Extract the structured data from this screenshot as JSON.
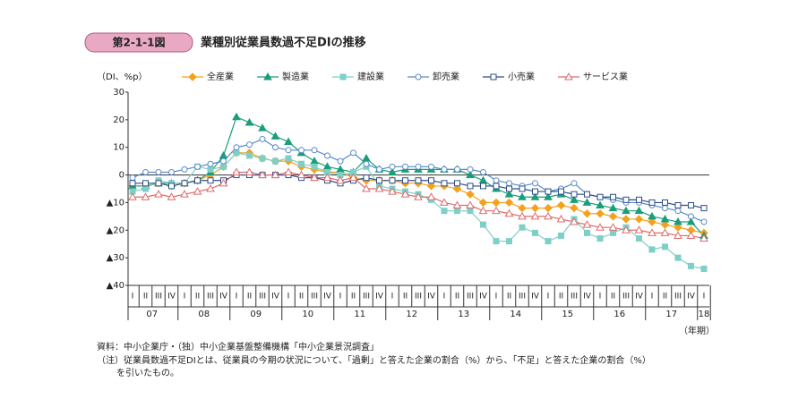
{
  "badge": "第2-1-1図",
  "chart_data": {
    "type": "line",
    "title": "業種別従業員数過不足DIの推移",
    "y_label": "（DI、%p）",
    "x_label": "（年期）",
    "categories": [
      "I",
      "II",
      "III",
      "IV",
      "I",
      "II",
      "III",
      "IV",
      "I",
      "II",
      "III",
      "IV",
      "I",
      "II",
      "III",
      "IV",
      "I",
      "II",
      "III",
      "IV",
      "I",
      "II",
      "III",
      "IV",
      "I",
      "II",
      "III",
      "IV",
      "I",
      "II",
      "III",
      "IV",
      "I",
      "II",
      "III",
      "IV",
      "I",
      "II",
      "III",
      "IV",
      "I",
      "II",
      "III",
      "IV",
      "I"
    ],
    "year_labels": [
      "07",
      "08",
      "09",
      "10",
      "11",
      "12",
      "13",
      "14",
      "15",
      "16",
      "17",
      "18"
    ],
    "ylim": [
      -40,
      30
    ],
    "yticks": [
      30,
      20,
      10,
      0,
      {
        "value": -10,
        "label": "▲10"
      },
      {
        "value": -20,
        "label": "▲20"
      },
      {
        "value": -30,
        "label": "▲30"
      },
      {
        "value": -40,
        "label": "▲40"
      }
    ],
    "series": [
      {
        "name": "全産業",
        "color": "#f4a11d",
        "marker": "diamond",
        "values": [
          -4,
          -4,
          -3,
          -4,
          -3,
          -2,
          0,
          3,
          8,
          8,
          6,
          5,
          5,
          3,
          2,
          1,
          1,
          -1,
          -2,
          -2,
          -2,
          -3,
          -3,
          -4,
          -4,
          -5,
          -7,
          -10,
          -10,
          -10,
          -12,
          -12,
          -12,
          -11,
          -12,
          -14,
          -14,
          -15,
          -16,
          -16,
          -17,
          -18,
          -19,
          -20,
          -21
        ]
      },
      {
        "name": "製造業",
        "color": "#1a9e7a",
        "marker": "triangle",
        "values": [
          -4,
          -4,
          -3,
          -3,
          -3,
          -2,
          1,
          7,
          21,
          19,
          17,
          14,
          12,
          8,
          5,
          3,
          2,
          1,
          6,
          2,
          1,
          2,
          2,
          2,
          2,
          2,
          0,
          -2,
          -5,
          -7,
          -8,
          -8,
          -8,
          -7,
          -9,
          -10,
          -11,
          -12,
          -13,
          -13,
          -15,
          -16,
          -17,
          -17,
          -22
        ]
      },
      {
        "name": "建設業",
        "color": "#7ecfc8",
        "marker": "square",
        "values": [
          -6,
          -5,
          -2,
          -3,
          -3,
          3,
          2,
          3,
          8,
          7,
          6,
          5,
          6,
          4,
          3,
          1,
          0,
          1,
          3,
          -4,
          -5,
          -6,
          -7,
          -9,
          -13,
          -13,
          -13,
          -18,
          -24,
          -24,
          -19,
          -21,
          -24,
          -22,
          -16,
          -21,
          -23,
          -21,
          -19,
          -23,
          -27,
          -26,
          -30,
          -33,
          -34
        ]
      },
      {
        "name": "卸売業",
        "color": "#5b8ac9",
        "marker": "circle-open",
        "values": [
          -1,
          1,
          1,
          1,
          2,
          3,
          4,
          5,
          10,
          11,
          13,
          10,
          9,
          9,
          9,
          7,
          5,
          8,
          4,
          2,
          3,
          3,
          3,
          3,
          2,
          2,
          2,
          1,
          -2,
          -3,
          -4,
          -3,
          -6,
          -5,
          -3,
          -7,
          -8,
          -9,
          -10,
          -10,
          -11,
          -12,
          -13,
          -15,
          -17
        ]
      },
      {
        "name": "小売業",
        "color": "#2e4e8a",
        "marker": "square-open",
        "values": [
          -3,
          -3,
          -3,
          -4,
          -3,
          -2,
          -2,
          -2,
          0,
          0,
          0,
          0,
          0,
          -1,
          -1,
          -2,
          -3,
          -2,
          -1,
          -2,
          -2,
          -2,
          -2,
          -2,
          -3,
          -3,
          -4,
          -4,
          -4,
          -5,
          -5,
          -6,
          -6,
          -6,
          -7,
          -7,
          -8,
          -8,
          -9,
          -9,
          -10,
          -10,
          -11,
          -11,
          -12
        ]
      },
      {
        "name": "サービス業",
        "color": "#e06b6b",
        "marker": "triangle-open",
        "values": [
          -8,
          -8,
          -7,
          -8,
          -7,
          -6,
          -5,
          -3,
          1,
          1,
          0,
          0,
          1,
          0,
          -1,
          -1,
          -2,
          -1,
          -5,
          -5,
          -6,
          -7,
          -8,
          -8,
          -10,
          -11,
          -11,
          -13,
          -13,
          -14,
          -15,
          -15,
          -15,
          -16,
          -17,
          -18,
          -19,
          -19,
          -20,
          -20,
          -21,
          -21,
          -22,
          -22,
          -23
        ]
      }
    ]
  },
  "notes": [
    "資料：中小企業庁・（独）中小企業基盤整備機構「中小企業景況調査」",
    "（注）従業員数過不足DIとは、従業員の今期の状況について、「過剰」と答えた企業の割合（%）から、「不足」と答えた企業の割合（%）",
    "を引いたもの。"
  ]
}
